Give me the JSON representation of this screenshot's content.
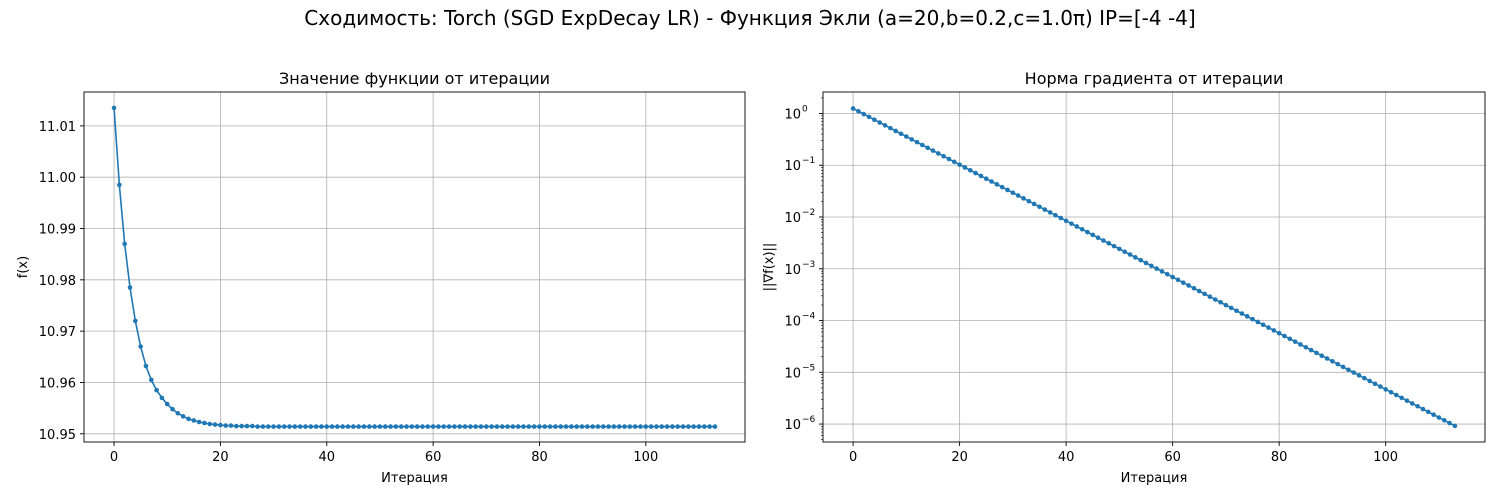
{
  "suptitle": "Сходимость: Torch (SGD ExpDecay LR) - Функция Экли (a=20,b=0.2,c=1.0π) IP=[-4 -4]",
  "colors": {
    "series": "#1f77b4",
    "grid": "#b0b0b0",
    "axis": "#000000"
  },
  "chart_data": [
    {
      "type": "line",
      "title": "Значение функции от итерации",
      "xlabel": "Итерация",
      "ylabel": "f(x)",
      "xlim": [
        -5.65,
        118.65
      ],
      "ylim": [
        10.9484,
        11.0166
      ],
      "xticks": [
        0,
        20,
        40,
        60,
        80,
        100
      ],
      "xtick_labels": [
        "0",
        "20",
        "40",
        "60",
        "80",
        "100"
      ],
      "yticks": [
        10.95,
        10.96,
        10.97,
        10.98,
        10.99,
        11.0,
        11.01
      ],
      "ytick_labels": [
        "10.95",
        "10.96",
        "10.97",
        "10.98",
        "10.99",
        "11.00",
        "11.01"
      ],
      "grid": true,
      "marker": "circle",
      "series": [
        {
          "x_start": 0,
          "x_end": 113,
          "values": [
            11.0135,
            10.9985,
            10.987,
            10.9785,
            10.972,
            10.967,
            10.9632,
            10.9605,
            10.9585,
            10.957,
            10.9558,
            10.9548,
            10.954,
            10.9534,
            10.9529,
            10.9526,
            10.9523,
            10.9521,
            10.9519,
            10.9518,
            10.9517,
            10.9516,
            10.9516,
            10.9515,
            10.9515,
            10.9515,
            10.9515,
            10.9514
          ],
          "tail_value": 10.9514
        }
      ]
    },
    {
      "type": "line",
      "title": "Норма градиента от итерации",
      "xlabel": "Итерация",
      "ylabel": "||∇f(x)||",
      "yscale": "log",
      "xlim": [
        -5.65,
        118.65
      ],
      "ylim": [
        4.5e-07,
        2.6
      ],
      "xticks": [
        0,
        20,
        40,
        60,
        80,
        100
      ],
      "xtick_labels": [
        "0",
        "20",
        "40",
        "60",
        "80",
        "100"
      ],
      "yticks": [
        1e-06,
        1e-05,
        0.0001,
        0.001,
        0.01,
        0.1,
        1
      ],
      "ytick_base": "10",
      "ytick_exponents": [
        "−6",
        "−5",
        "−4",
        "−3",
        "−2",
        "−1",
        "0"
      ],
      "grid": true,
      "marker": "circle",
      "series": [
        {
          "x_start": 0,
          "x_end": 113,
          "y_start": 1.25,
          "y_end": 9.2e-07
        }
      ]
    }
  ]
}
